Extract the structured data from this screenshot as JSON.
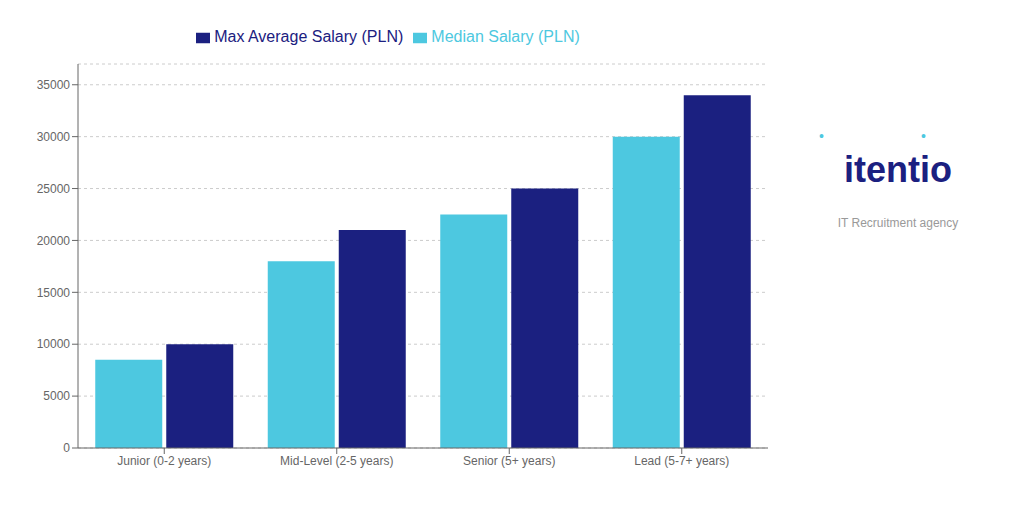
{
  "chart_data": {
    "type": "bar",
    "categories": [
      "Junior (0-2 years)",
      "Mid-Level (2-5 years)",
      "Senior (5+ years)",
      "Lead (5-7+ years)"
    ],
    "series": [
      {
        "name": "Median Salary (PLN)",
        "color": "#4DC8E0",
        "values": [
          8500,
          18000,
          22500,
          30000
        ]
      },
      {
        "name": "Max Average Salary (PLN)",
        "color": "#1B2080",
        "values": [
          10000,
          21000,
          25000,
          34000
        ]
      }
    ],
    "ylim": [
      0,
      37000
    ],
    "yticks": [
      0,
      5000,
      10000,
      15000,
      20000,
      25000,
      30000,
      35000
    ],
    "grid": true,
    "annotations": [
      {
        "text": "itentio",
        "color": "#1B2080"
      },
      {
        "text": "IT Recruitment agency",
        "color": "#999999"
      },
      {
        "text": "•",
        "color": "#4DC8E0"
      },
      {
        "text": "•",
        "color": "#4DC8E0"
      }
    ]
  }
}
